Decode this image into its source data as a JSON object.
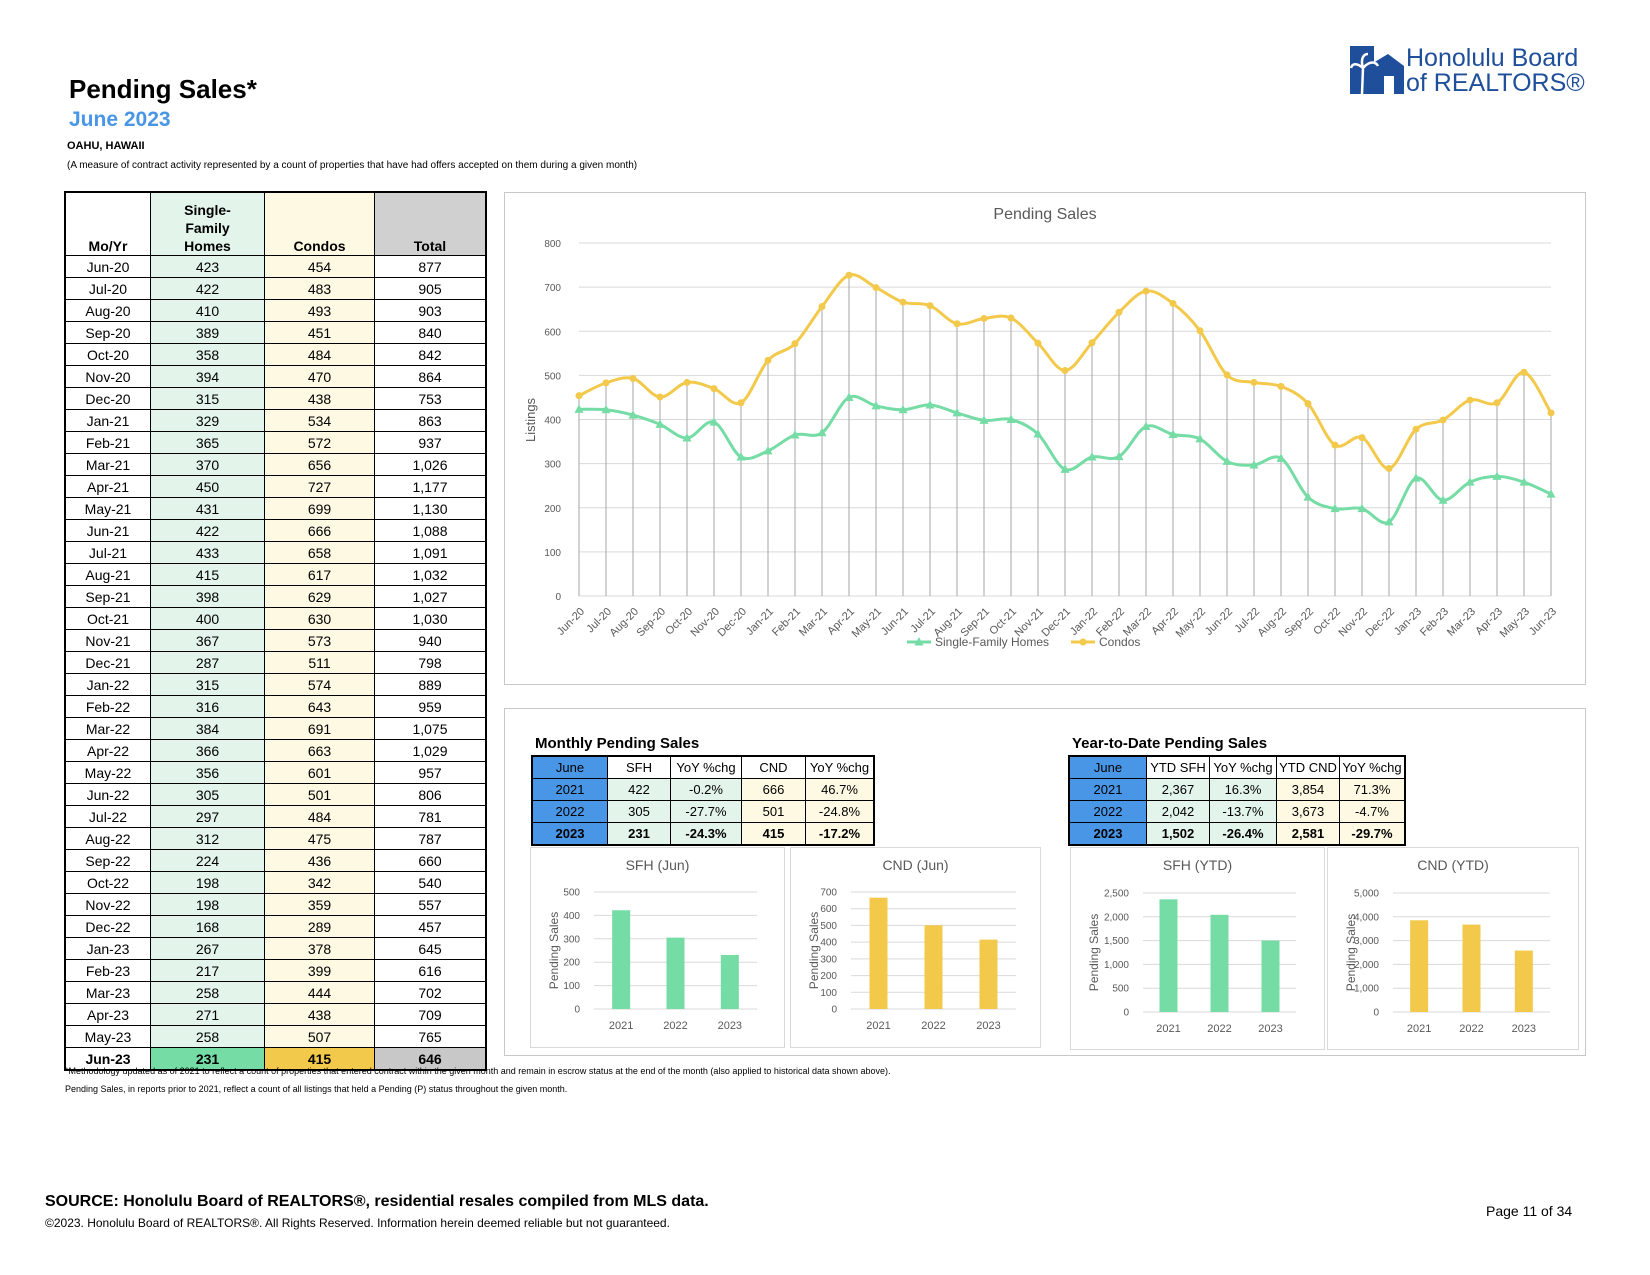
{
  "header": {
    "title": "Pending Sales*",
    "subtitle": "June 2023",
    "region": "OAHU, HAWAII",
    "description": "(A measure of contract activity represented by a count of properties that have had offers accepted on them during a given month)",
    "logo_line1": "Honolulu Board",
    "logo_line2": "of REALTORS®"
  },
  "table": {
    "headers": [
      "Mo/Yr",
      "Single-Family Homes",
      "Condos",
      "Total"
    ],
    "rows": [
      [
        "Jun-20",
        "423",
        "454",
        "877"
      ],
      [
        "Jul-20",
        "422",
        "483",
        "905"
      ],
      [
        "Aug-20",
        "410",
        "493",
        "903"
      ],
      [
        "Sep-20",
        "389",
        "451",
        "840"
      ],
      [
        "Oct-20",
        "358",
        "484",
        "842"
      ],
      [
        "Nov-20",
        "394",
        "470",
        "864"
      ],
      [
        "Dec-20",
        "315",
        "438",
        "753"
      ],
      [
        "Jan-21",
        "329",
        "534",
        "863"
      ],
      [
        "Feb-21",
        "365",
        "572",
        "937"
      ],
      [
        "Mar-21",
        "370",
        "656",
        "1,026"
      ],
      [
        "Apr-21",
        "450",
        "727",
        "1,177"
      ],
      [
        "May-21",
        "431",
        "699",
        "1,130"
      ],
      [
        "Jun-21",
        "422",
        "666",
        "1,088"
      ],
      [
        "Jul-21",
        "433",
        "658",
        "1,091"
      ],
      [
        "Aug-21",
        "415",
        "617",
        "1,032"
      ],
      [
        "Sep-21",
        "398",
        "629",
        "1,027"
      ],
      [
        "Oct-21",
        "400",
        "630",
        "1,030"
      ],
      [
        "Nov-21",
        "367",
        "573",
        "940"
      ],
      [
        "Dec-21",
        "287",
        "511",
        "798"
      ],
      [
        "Jan-22",
        "315",
        "574",
        "889"
      ],
      [
        "Feb-22",
        "316",
        "643",
        "959"
      ],
      [
        "Mar-22",
        "384",
        "691",
        "1,075"
      ],
      [
        "Apr-22",
        "366",
        "663",
        "1,029"
      ],
      [
        "May-22",
        "356",
        "601",
        "957"
      ],
      [
        "Jun-22",
        "305",
        "501",
        "806"
      ],
      [
        "Jul-22",
        "297",
        "484",
        "781"
      ],
      [
        "Aug-22",
        "312",
        "475",
        "787"
      ],
      [
        "Sep-22",
        "224",
        "436",
        "660"
      ],
      [
        "Oct-22",
        "198",
        "342",
        "540"
      ],
      [
        "Nov-22",
        "198",
        "359",
        "557"
      ],
      [
        "Dec-22",
        "168",
        "289",
        "457"
      ],
      [
        "Jan-23",
        "267",
        "378",
        "645"
      ],
      [
        "Feb-23",
        "217",
        "399",
        "616"
      ],
      [
        "Mar-23",
        "258",
        "444",
        "702"
      ],
      [
        "Apr-23",
        "271",
        "438",
        "709"
      ],
      [
        "May-23",
        "258",
        "507",
        "765"
      ],
      [
        "Jun-23",
        "231",
        "415",
        "646"
      ]
    ]
  },
  "monthly": {
    "title": "Monthly Pending Sales",
    "headers": [
      "June",
      "SFH",
      "YoY %chg",
      "CND",
      "YoY %chg"
    ],
    "rows": [
      [
        "2021",
        "422",
        "-0.2%",
        "666",
        "46.7%"
      ],
      [
        "2022",
        "305",
        "-27.7%",
        "501",
        "-24.8%"
      ],
      [
        "2023",
        "231",
        "-24.3%",
        "415",
        "-17.2%"
      ]
    ]
  },
  "ytd": {
    "title": "Year-to-Date Pending Sales",
    "headers": [
      "June",
      "YTD SFH",
      "YoY %chg",
      "YTD CND",
      "YoY %chg"
    ],
    "rows": [
      [
        "2021",
        "2,367",
        "16.3%",
        "3,854",
        "71.3%"
      ],
      [
        "2022",
        "2,042",
        "-13.7%",
        "3,673",
        "-4.7%"
      ],
      [
        "2023",
        "1,502",
        "-26.4%",
        "2,581",
        "-29.7%"
      ]
    ]
  },
  "colors": {
    "sfh": "#74dca4",
    "condo": "#f2c94b",
    "year_blue": "#4a96e6"
  },
  "footer": {
    "note1": "*Methodology updated as of 2021 to reflect a count of properties that entered contract within the given month and remain in escrow status at the end of the month (also applied to historical data shown above).",
    "note2": "Pending Sales, in reports prior to 2021, reflect a count of all listings that held a Pending (P) status throughout the given month.",
    "source": "SOURCE: Honolulu Board of REALTORS®, residential resales compiled from MLS data.",
    "copyright": "©2023. Honolulu Board of REALTORS®. All Rights Reserved. Information herein deemed reliable but not guaranteed.",
    "page": "Page 11 of 34"
  },
  "chart_data": [
    {
      "type": "line",
      "title": "Pending Sales",
      "ylabel": "Listings",
      "ylim": [
        0,
        800
      ],
      "yticks": [
        "0",
        "100",
        "200",
        "300",
        "400",
        "500",
        "600",
        "700",
        "800"
      ],
      "categories": [
        "Jun-20",
        "Jul-20",
        "Aug-20",
        "Sep-20",
        "Oct-20",
        "Nov-20",
        "Dec-20",
        "Jan-21",
        "Feb-21",
        "Mar-21",
        "Apr-21",
        "May-21",
        "Jun-21",
        "Jul-21",
        "Aug-21",
        "Sep-21",
        "Oct-21",
        "Nov-21",
        "Dec-21",
        "Jan-22",
        "Feb-22",
        "Mar-22",
        "Apr-22",
        "May-22",
        "Jun-22",
        "Jul-22",
        "Aug-22",
        "Sep-22",
        "Oct-22",
        "Nov-22",
        "Dec-22",
        "Jan-23",
        "Feb-23",
        "Mar-23",
        "Apr-23",
        "May-23",
        "Jun-23"
      ],
      "series": [
        {
          "name": "Single-Family Homes",
          "values": [
            423,
            422,
            410,
            389,
            358,
            394,
            315,
            329,
            365,
            370,
            450,
            431,
            422,
            433,
            415,
            398,
            400,
            367,
            287,
            315,
            316,
            384,
            366,
            356,
            305,
            297,
            312,
            224,
            198,
            198,
            168,
            267,
            217,
            258,
            271,
            258,
            231
          ]
        },
        {
          "name": "Condos",
          "values": [
            454,
            483,
            493,
            451,
            484,
            470,
            438,
            534,
            572,
            656,
            727,
            699,
            666,
            658,
            617,
            629,
            630,
            573,
            511,
            574,
            643,
            691,
            663,
            601,
            501,
            484,
            475,
            436,
            342,
            359,
            289,
            378,
            399,
            444,
            438,
            507,
            415
          ]
        }
      ],
      "legend": "bottom"
    },
    {
      "type": "bar",
      "title": "SFH (Jun)",
      "ylabel": "Pending Sales",
      "categories": [
        "2021",
        "2022",
        "2023"
      ],
      "values": [
        422,
        305,
        231
      ],
      "ylim": [
        0,
        500
      ],
      "yticks": [
        "0",
        "100",
        "200",
        "300",
        "400",
        "500"
      ]
    },
    {
      "type": "bar",
      "title": "CND (Jun)",
      "ylabel": "Pending Sales",
      "categories": [
        "2021",
        "2022",
        "2023"
      ],
      "values": [
        666,
        501,
        415
      ],
      "ylim": [
        0,
        700
      ],
      "yticks": [
        "0",
        "100",
        "200",
        "300",
        "400",
        "500",
        "600",
        "700"
      ]
    },
    {
      "type": "bar",
      "title": "SFH (YTD)",
      "ylabel": "Pending Sales",
      "categories": [
        "2021",
        "2022",
        "2023"
      ],
      "values": [
        2367,
        2042,
        1502
      ],
      "ylim": [
        0,
        2500
      ],
      "yticks": [
        "0",
        "500",
        "1,000",
        "1,500",
        "2,000",
        "2,500"
      ]
    },
    {
      "type": "bar",
      "title": "CND (YTD)",
      "ylabel": "Pending Sales",
      "categories": [
        "2021",
        "2022",
        "2023"
      ],
      "values": [
        3854,
        3673,
        2581
      ],
      "ylim": [
        0,
        5000
      ],
      "yticks": [
        "0",
        "1,000",
        "2,000",
        "3,000",
        "4,000",
        "5,000"
      ]
    }
  ]
}
